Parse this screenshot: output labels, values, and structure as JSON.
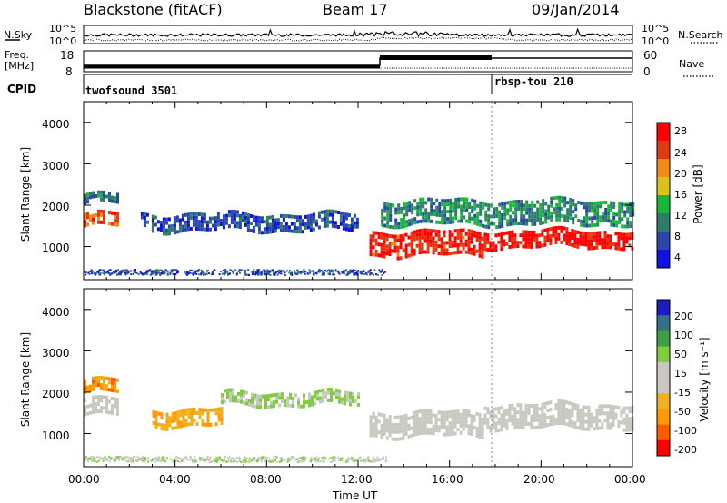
{
  "header": {
    "station": "Blackstone (fitACF)",
    "beam": "Beam 17",
    "date": "09/Jan/2014"
  },
  "noise_panel": {
    "left_label": "N.Sky",
    "right_label": "N.Search",
    "left_ticks": [
      "10^5",
      "10^0"
    ],
    "right_ticks": [
      "10^5",
      "10^0"
    ]
  },
  "freq_panel": {
    "left_label_line1": "Freq.",
    "left_label_line2": "[MHz]",
    "right_label": "Nave",
    "left_ticks": [
      "18",
      "8"
    ],
    "right_ticks": [
      "60",
      "0"
    ]
  },
  "cpid_panel": {
    "label": "CPID",
    "programs": [
      "twofsound 3501",
      "rbsp-tou 210"
    ]
  },
  "power_panel": {
    "ylabel": "Slant Range [km]",
    "colorbar_label": "Power [dB]",
    "colorbar_ticks": [
      "28",
      "24",
      "20",
      "16",
      "12",
      "8",
      "4"
    ],
    "y_ticks": [
      "4000",
      "3000",
      "2000",
      "1000"
    ]
  },
  "velocity_panel": {
    "ylabel": "Slant Range [km]",
    "colorbar_label": "Velocity [m s⁻¹]",
    "colorbar_ticks": [
      "200",
      "100",
      "50",
      "15",
      "-15",
      "-50",
      "-100",
      "-200"
    ],
    "y_ticks": [
      "4000",
      "3000",
      "2000",
      "1000"
    ]
  },
  "x_axis": {
    "label": "Time UT",
    "ticks": [
      "00:00",
      "04:00",
      "08:00",
      "12:00",
      "16:00",
      "20:00",
      "00:00"
    ]
  },
  "colors": {
    "power_scale": [
      "#1010e0",
      "#2a46a8",
      "#2d7d6a",
      "#17b83a",
      "#d9c21a",
      "#f08b18",
      "#e03a12",
      "#ff0000"
    ],
    "velocity_scale": [
      "#ff0000",
      "#ff5a00",
      "#ff9a00",
      "#f0b020",
      "#c8c8c0",
      "#c8c8c0",
      "#80cc40",
      "#3f9f45",
      "#356f8a",
      "#1c1cc0"
    ]
  },
  "chart_data": [
    {
      "type": "heatmap",
      "title": "Power",
      "ylabel": "Slant Range [km]",
      "xlabel": "Time UT",
      "x_unit": "hours UT",
      "xlim": [
        0,
        24
      ],
      "ylim": [
        200,
        4500
      ],
      "colorbar_range": [
        0,
        30
      ],
      "bands": [
        {
          "x": [
            0,
            1.5
          ],
          "y_center": 1700,
          "halfwidth": 150,
          "value": 24
        },
        {
          "x": [
            0,
            1.5
          ],
          "y_center": 2200,
          "halfwidth": 100,
          "value": 8
        },
        {
          "x": [
            2.5,
            12
          ],
          "y_center": 1650,
          "halfwidth": 200,
          "value": 6
        },
        {
          "x": [
            12.5,
            17.5
          ],
          "y_center": 1150,
          "halfwidth": 300,
          "value": 26
        },
        {
          "x": [
            17.5,
            24
          ],
          "y_center": 1250,
          "halfwidth": 200,
          "value": 28
        },
        {
          "x": [
            13,
            24
          ],
          "y_center": 1900,
          "halfwidth": 300,
          "value": 10
        }
      ]
    },
    {
      "type": "heatmap",
      "title": "Velocity",
      "ylabel": "Slant Range [km]",
      "xlabel": "Time UT",
      "x_unit": "hours UT",
      "xlim": [
        0,
        24
      ],
      "ylim": [
        200,
        4500
      ],
      "colorbar_range": [
        -200,
        200
      ],
      "bands": [
        {
          "x": [
            0,
            1.5
          ],
          "y_center": 1700,
          "halfwidth": 200,
          "value": 0
        },
        {
          "x": [
            0,
            1.5
          ],
          "y_center": 2200,
          "halfwidth": 150,
          "value": -100
        },
        {
          "x": [
            3,
            6
          ],
          "y_center": 1450,
          "halfwidth": 200,
          "value": -70
        },
        {
          "x": [
            6,
            12
          ],
          "y_center": 1900,
          "halfwidth": 150,
          "value": 40
        },
        {
          "x": [
            12.5,
            17.5
          ],
          "y_center": 1300,
          "halfwidth": 300,
          "value": 0
        },
        {
          "x": [
            17.5,
            24
          ],
          "y_center": 1500,
          "halfwidth": 300,
          "value": 0
        }
      ]
    }
  ]
}
